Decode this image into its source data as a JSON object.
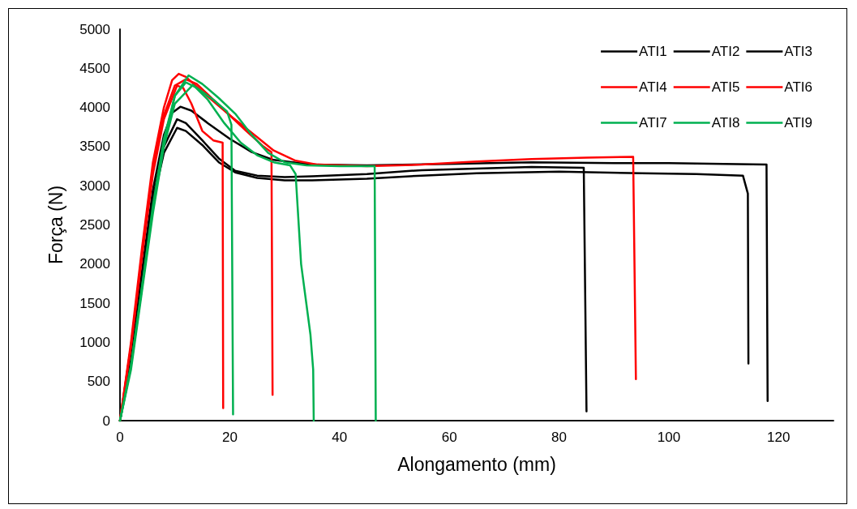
{
  "chart_data": {
    "type": "line",
    "xlabel": "Alongamento (mm)",
    "ylabel": "Força (N)",
    "xlim": [
      0,
      130
    ],
    "xticks": [
      0,
      20,
      40,
      60,
      80,
      100,
      120
    ],
    "ylim": [
      0,
      5000
    ],
    "yticks": [
      0,
      500,
      1000,
      1500,
      2000,
      2500,
      3000,
      3500,
      4000,
      4500,
      5000
    ],
    "grid": false,
    "legend": "top right",
    "marker": "none",
    "line_style": "solid",
    "series": [
      {
        "name": "ATI1",
        "color": "#000000",
        "x": [
          0,
          2,
          4,
          6,
          8,
          9.5,
          11,
          13,
          16,
          20,
          24,
          28,
          35,
          45,
          60,
          75,
          90,
          100,
          110,
          117.8,
          118
        ],
        "values": [
          0,
          800,
          1900,
          2950,
          3650,
          3930,
          4010,
          3960,
          3800,
          3600,
          3430,
          3330,
          3270,
          3260,
          3280,
          3300,
          3290,
          3290,
          3280,
          3270,
          250
        ]
      },
      {
        "name": "ATI2",
        "color": "#000000",
        "x": [
          0,
          2,
          4,
          6,
          8,
          10.4,
          12,
          15,
          18,
          21,
          25,
          30,
          35,
          45,
          55,
          65,
          75,
          84.5,
          85
        ],
        "values": [
          0,
          800,
          1850,
          2850,
          3500,
          3850,
          3800,
          3580,
          3350,
          3190,
          3130,
          3110,
          3120,
          3150,
          3200,
          3220,
          3240,
          3230,
          120
        ]
      },
      {
        "name": "ATI3",
        "color": "#000000",
        "x": [
          0,
          2,
          4,
          6,
          8,
          10.4,
          12,
          15,
          18,
          21,
          25,
          30,
          35,
          45,
          55,
          65,
          80,
          95,
          105,
          113.5,
          114.4,
          114.5
        ],
        "values": [
          0,
          780,
          1800,
          2800,
          3420,
          3740,
          3700,
          3520,
          3300,
          3170,
          3100,
          3070,
          3070,
          3090,
          3130,
          3160,
          3180,
          3160,
          3150,
          3130,
          2900,
          730
        ]
      },
      {
        "name": "ATI4",
        "color": "#ff0000",
        "x": [
          0,
          2,
          4,
          6,
          8,
          9.5,
          10.7,
          12,
          15,
          20,
          25,
          28,
          32,
          36,
          45,
          55,
          65,
          75,
          85,
          93.5,
          94
        ],
        "values": [
          0,
          1000,
          2200,
          3300,
          4000,
          4350,
          4430,
          4390,
          4200,
          3900,
          3620,
          3450,
          3320,
          3270,
          3250,
          3270,
          3310,
          3340,
          3360,
          3370,
          530
        ]
      },
      {
        "name": "ATI5",
        "color": "#ff0000",
        "x": [
          0,
          2,
          4,
          6,
          8,
          10,
          12,
          14,
          17,
          20,
          23,
          26,
          27.6,
          27.8
        ],
        "values": [
          0,
          950,
          2100,
          3200,
          3900,
          4280,
          4360,
          4300,
          4100,
          3900,
          3700,
          3510,
          3430,
          330
        ]
      },
      {
        "name": "ATI6",
        "color": "#ff0000",
        "x": [
          0,
          2,
          4,
          6,
          8,
          10.4,
          11.5,
          13,
          15,
          17,
          18.7,
          18.8
        ],
        "values": [
          0,
          950,
          2100,
          3150,
          3850,
          4280,
          4250,
          4050,
          3700,
          3580,
          3550,
          160
        ]
      },
      {
        "name": "ATI7",
        "color": "#00b050",
        "x": [
          0,
          2,
          4,
          6,
          8,
          10,
          12.5,
          15,
          18,
          21,
          24,
          27,
          30,
          34,
          40,
          46.4,
          46.6
        ],
        "values": [
          0,
          700,
          1700,
          2700,
          3550,
          4150,
          4410,
          4300,
          4120,
          3920,
          3650,
          3420,
          3300,
          3260,
          3250,
          3250,
          0
        ]
      },
      {
        "name": "ATI8",
        "color": "#00b050",
        "x": [
          0,
          2,
          4,
          6,
          8,
          10,
          12,
          14,
          17,
          19.5,
          20.3,
          20.6
        ],
        "values": [
          0,
          700,
          1700,
          2750,
          3600,
          4150,
          4320,
          4250,
          4100,
          3950,
          3780,
          80
        ]
      },
      {
        "name": "ATI9",
        "color": "#00b050",
        "x": [
          0,
          2,
          4,
          6,
          8,
          10,
          13.3,
          16,
          19,
          22,
          25,
          28,
          31,
          32,
          33,
          34.7,
          35.2,
          35.3
        ],
        "values": [
          0,
          650,
          1650,
          2650,
          3500,
          4050,
          4290,
          4100,
          3800,
          3550,
          3390,
          3300,
          3260,
          3150,
          2000,
          1100,
          650,
          0
        ]
      }
    ]
  }
}
